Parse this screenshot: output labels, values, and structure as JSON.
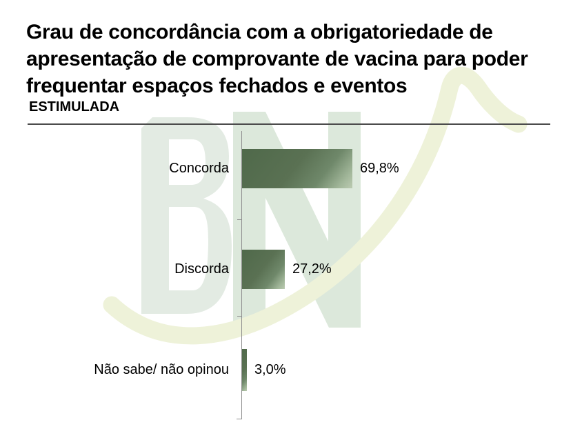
{
  "title_lines": [
    "Grau de concordância com a obrigatoriedade de",
    "apresentação de comprovante de vacina para poder",
    "frequentar espaços fechados e eventos"
  ],
  "subtitle": "ESTIMULADA",
  "watermark": {
    "text": "BN",
    "letter_b_color": "#e3ebe3",
    "letter_n_color": "#dce8db",
    "swoosh_color": "#eef2d9"
  },
  "chart_data": {
    "type": "bar",
    "orientation": "horizontal",
    "title": "Grau de concordância com a obrigatoriedade de apresentação de comprovante de vacina para poder frequentar espaços fechados e eventos",
    "subtitle": "ESTIMULADA",
    "categories": [
      "Concorda",
      "Discorda",
      "Não sabe/ não opinou"
    ],
    "values": [
      69.8,
      27.2,
      3.0
    ],
    "value_labels": [
      "69,8%",
      "27,2%",
      "3,0%"
    ],
    "xlabel": "",
    "ylabel": "",
    "xlim": [
      0,
      100
    ],
    "grid": false,
    "legend": false,
    "bar_color_dark": "#4f694a",
    "bar_color_light": "#bccbb2",
    "axis_color": "#8f8f8f"
  }
}
